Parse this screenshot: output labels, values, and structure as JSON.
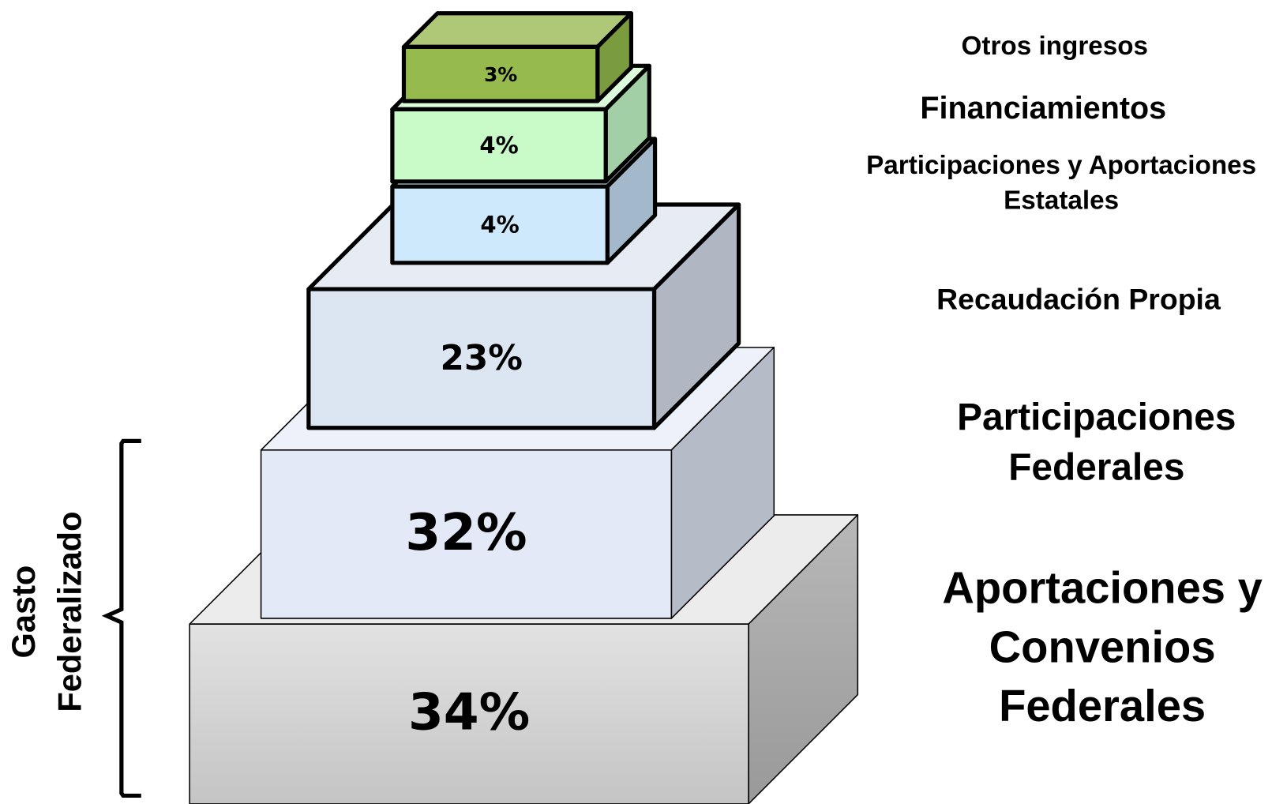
{
  "layers": [
    {
      "share": "34%",
      "label_lines": [
        "Aportaciones y",
        "Convenios",
        "Federales"
      ]
    },
    {
      "share": "32%",
      "label_lines": [
        "Participaciones",
        "Federales"
      ]
    },
    {
      "share": "23%",
      "label_lines": [
        "Recaudación Propia"
      ]
    },
    {
      "share": "4%",
      "label_lines": [
        "Participaciones y Aportaciones",
        "Estatales"
      ]
    },
    {
      "share": "4%",
      "label_lines": [
        "Financiamientos"
      ]
    },
    {
      "share": "3%",
      "label_lines": [
        "Otros ingresos"
      ]
    }
  ],
  "bracket_label_lines": [
    "Gasto",
    "Federalizado"
  ]
}
